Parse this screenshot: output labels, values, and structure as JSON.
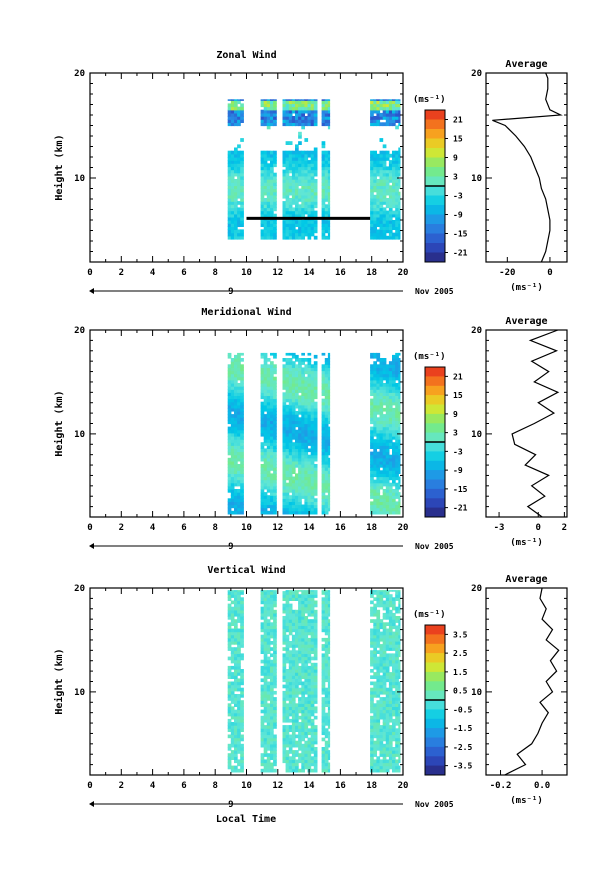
{
  "figure": {
    "date_label": "Nov 2005",
    "day_label": "9",
    "xlabel": "Local Time",
    "average_title": "Average",
    "unit_label": "(ms⁻¹)"
  },
  "chart_data": [
    {
      "type": "heatmap",
      "title": "Zonal Wind",
      "ylabel": "Height (km)",
      "xlim": [
        0,
        20
      ],
      "ylim": [
        2,
        20
      ],
      "xticks": [
        "0",
        "2",
        "4",
        "6",
        "8",
        "10",
        "12",
        "14",
        "16",
        "18",
        "20"
      ],
      "yticks": [
        "10",
        "20"
      ],
      "colorbar": {
        "unit": "(ms⁻¹)",
        "ticks": [
          "21",
          "15",
          "9",
          "3",
          "-3",
          "-9",
          "-15",
          "-21"
        ],
        "range": [
          -24,
          24
        ]
      },
      "data_segments": [
        [
          8.8,
          9.8
        ],
        [
          10.9,
          11.9
        ],
        [
          12.3,
          14.5
        ],
        [
          14.8,
          15.3
        ],
        [
          17.9,
          19.8
        ]
      ],
      "data_heights": [
        4.2,
        17.5
      ],
      "average": {
        "xticks": [
          "-20",
          "0"
        ],
        "xlim": [
          -30,
          8
        ],
        "profile": [
          [
            2.0,
            -4
          ],
          [
            3,
            -2
          ],
          [
            4,
            -1
          ],
          [
            5,
            0
          ],
          [
            6,
            0
          ],
          [
            7,
            -1
          ],
          [
            8,
            -2
          ],
          [
            9,
            -4
          ],
          [
            10,
            -5
          ],
          [
            11,
            -7
          ],
          [
            12,
            -9
          ],
          [
            13,
            -12
          ],
          [
            14,
            -16
          ],
          [
            15,
            -21
          ],
          [
            15.5,
            -27
          ],
          [
            16.0,
            5
          ],
          [
            16.5,
            0
          ],
          [
            17.5,
            -2
          ],
          [
            18.5,
            -1
          ],
          [
            19.5,
            -1
          ],
          [
            20.0,
            -2
          ]
        ]
      }
    },
    {
      "type": "heatmap",
      "title": "Meridional Wind",
      "ylabel": "Height (km)",
      "xlim": [
        0,
        20
      ],
      "ylim": [
        2,
        20
      ],
      "xticks": [
        "0",
        "2",
        "4",
        "6",
        "8",
        "10",
        "12",
        "14",
        "16",
        "18",
        "20"
      ],
      "yticks": [
        "10",
        "20"
      ],
      "colorbar": {
        "unit": "(ms⁻¹)",
        "ticks": [
          "21",
          "15",
          "9",
          "3",
          "-3",
          "-9",
          "-15",
          "-21"
        ],
        "range": [
          -24,
          24
        ]
      },
      "data_segments": [
        [
          8.8,
          9.8
        ],
        [
          10.9,
          11.9
        ],
        [
          12.3,
          14.5
        ],
        [
          14.8,
          15.3
        ],
        [
          17.9,
          19.8
        ]
      ],
      "data_heights": [
        2.3,
        17.8
      ],
      "average": {
        "xticks": [
          "-3",
          "0",
          "2"
        ],
        "xlim": [
          -4,
          2.2
        ],
        "profile": [
          [
            2.0,
            0.3
          ],
          [
            3,
            -0.8
          ],
          [
            4,
            0.5
          ],
          [
            5,
            -0.5
          ],
          [
            6,
            0.8
          ],
          [
            7,
            -1.0
          ],
          [
            8,
            -0.2
          ],
          [
            9,
            -1.8
          ],
          [
            10,
            -2.0
          ],
          [
            11,
            -0.3
          ],
          [
            12,
            1.2
          ],
          [
            13,
            0.0
          ],
          [
            14,
            1.5
          ],
          [
            15,
            -0.3
          ],
          [
            16,
            0.8
          ],
          [
            17,
            -0.5
          ],
          [
            18,
            1.4
          ],
          [
            19,
            -0.6
          ],
          [
            20.0,
            1.5
          ]
        ]
      }
    },
    {
      "type": "heatmap",
      "title": "Vertical Wind",
      "ylabel": "Height (km)",
      "xlim": [
        0,
        20
      ],
      "ylim": [
        2,
        20
      ],
      "xticks": [
        "0",
        "2",
        "4",
        "6",
        "8",
        "10",
        "12",
        "14",
        "16",
        "18",
        "20"
      ],
      "yticks": [
        "10",
        "20"
      ],
      "colorbar": {
        "unit": "(ms⁻¹)",
        "ticks": [
          "3.5",
          "2.5",
          "1.5",
          "0.5",
          "-0.5",
          "-1.5",
          "-2.5",
          "-3.5"
        ],
        "range": [
          -4,
          4
        ]
      },
      "data_segments": [
        [
          8.8,
          9.8
        ],
        [
          10.9,
          11.9
        ],
        [
          12.3,
          14.5
        ],
        [
          14.8,
          15.3
        ],
        [
          17.9,
          19.8
        ]
      ],
      "data_heights": [
        2.3,
        19.8
      ],
      "average": {
        "xticks": [
          "-0.2",
          "0.0"
        ],
        "xlim": [
          -0.27,
          0.12
        ],
        "profile": [
          [
            2.0,
            -0.18
          ],
          [
            3,
            -0.08
          ],
          [
            4,
            -0.12
          ],
          [
            5,
            -0.05
          ],
          [
            6,
            -0.02
          ],
          [
            7,
            0.0
          ],
          [
            8,
            0.03
          ],
          [
            9,
            -0.01
          ],
          [
            10,
            0.05
          ],
          [
            11,
            0.02
          ],
          [
            12,
            0.07
          ],
          [
            13,
            0.04
          ],
          [
            14,
            0.08
          ],
          [
            15,
            0.02
          ],
          [
            16,
            0.05
          ],
          [
            17,
            0.0
          ],
          [
            18,
            0.02
          ],
          [
            19,
            -0.01
          ],
          [
            20.0,
            0.0
          ]
        ]
      }
    }
  ]
}
